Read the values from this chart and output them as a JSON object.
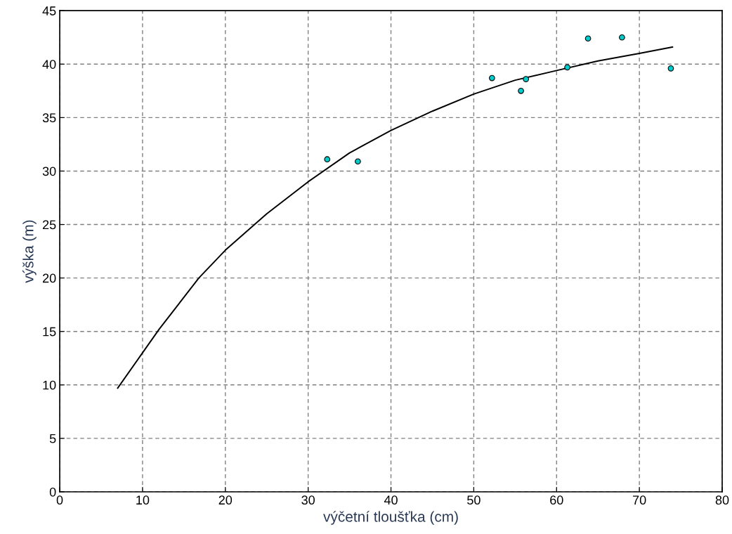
{
  "chart_data": {
    "type": "scatter",
    "xlabel": "výčetní tloušťka (cm)",
    "ylabel": "výška (m)",
    "xlim": [
      0,
      80
    ],
    "xticks": [
      0,
      10,
      20,
      30,
      40,
      50,
      60,
      70,
      80
    ],
    "ylim": [
      0,
      45
    ],
    "yticks": [
      0,
      5,
      10,
      15,
      20,
      25,
      30,
      35,
      40,
      45
    ],
    "grid": true,
    "series": [
      {
        "color": "#00cccc",
        "marker": "circle",
        "x": [
          32.3,
          36.0,
          52.2,
          55.7,
          56.3,
          61.3,
          63.8,
          67.9,
          73.8
        ],
        "values": [
          31.1,
          30.9,
          38.7,
          37.5,
          38.6,
          39.7,
          42.4,
          42.5,
          39.6
        ]
      },
      {
        "type": "line",
        "color": "#000000",
        "marker": "none",
        "line_style": "solid",
        "x": [
          7,
          10,
          12,
          16.8,
          20,
          25,
          30,
          35,
          40,
          45,
          50,
          55,
          60,
          65,
          70,
          74
        ],
        "values": [
          9.7,
          13.0,
          15.2,
          20.0,
          22.6,
          26.0,
          29.0,
          31.7,
          33.8,
          35.6,
          37.2,
          38.5,
          39.4,
          40.3,
          41.0,
          41.6
        ]
      }
    ]
  }
}
